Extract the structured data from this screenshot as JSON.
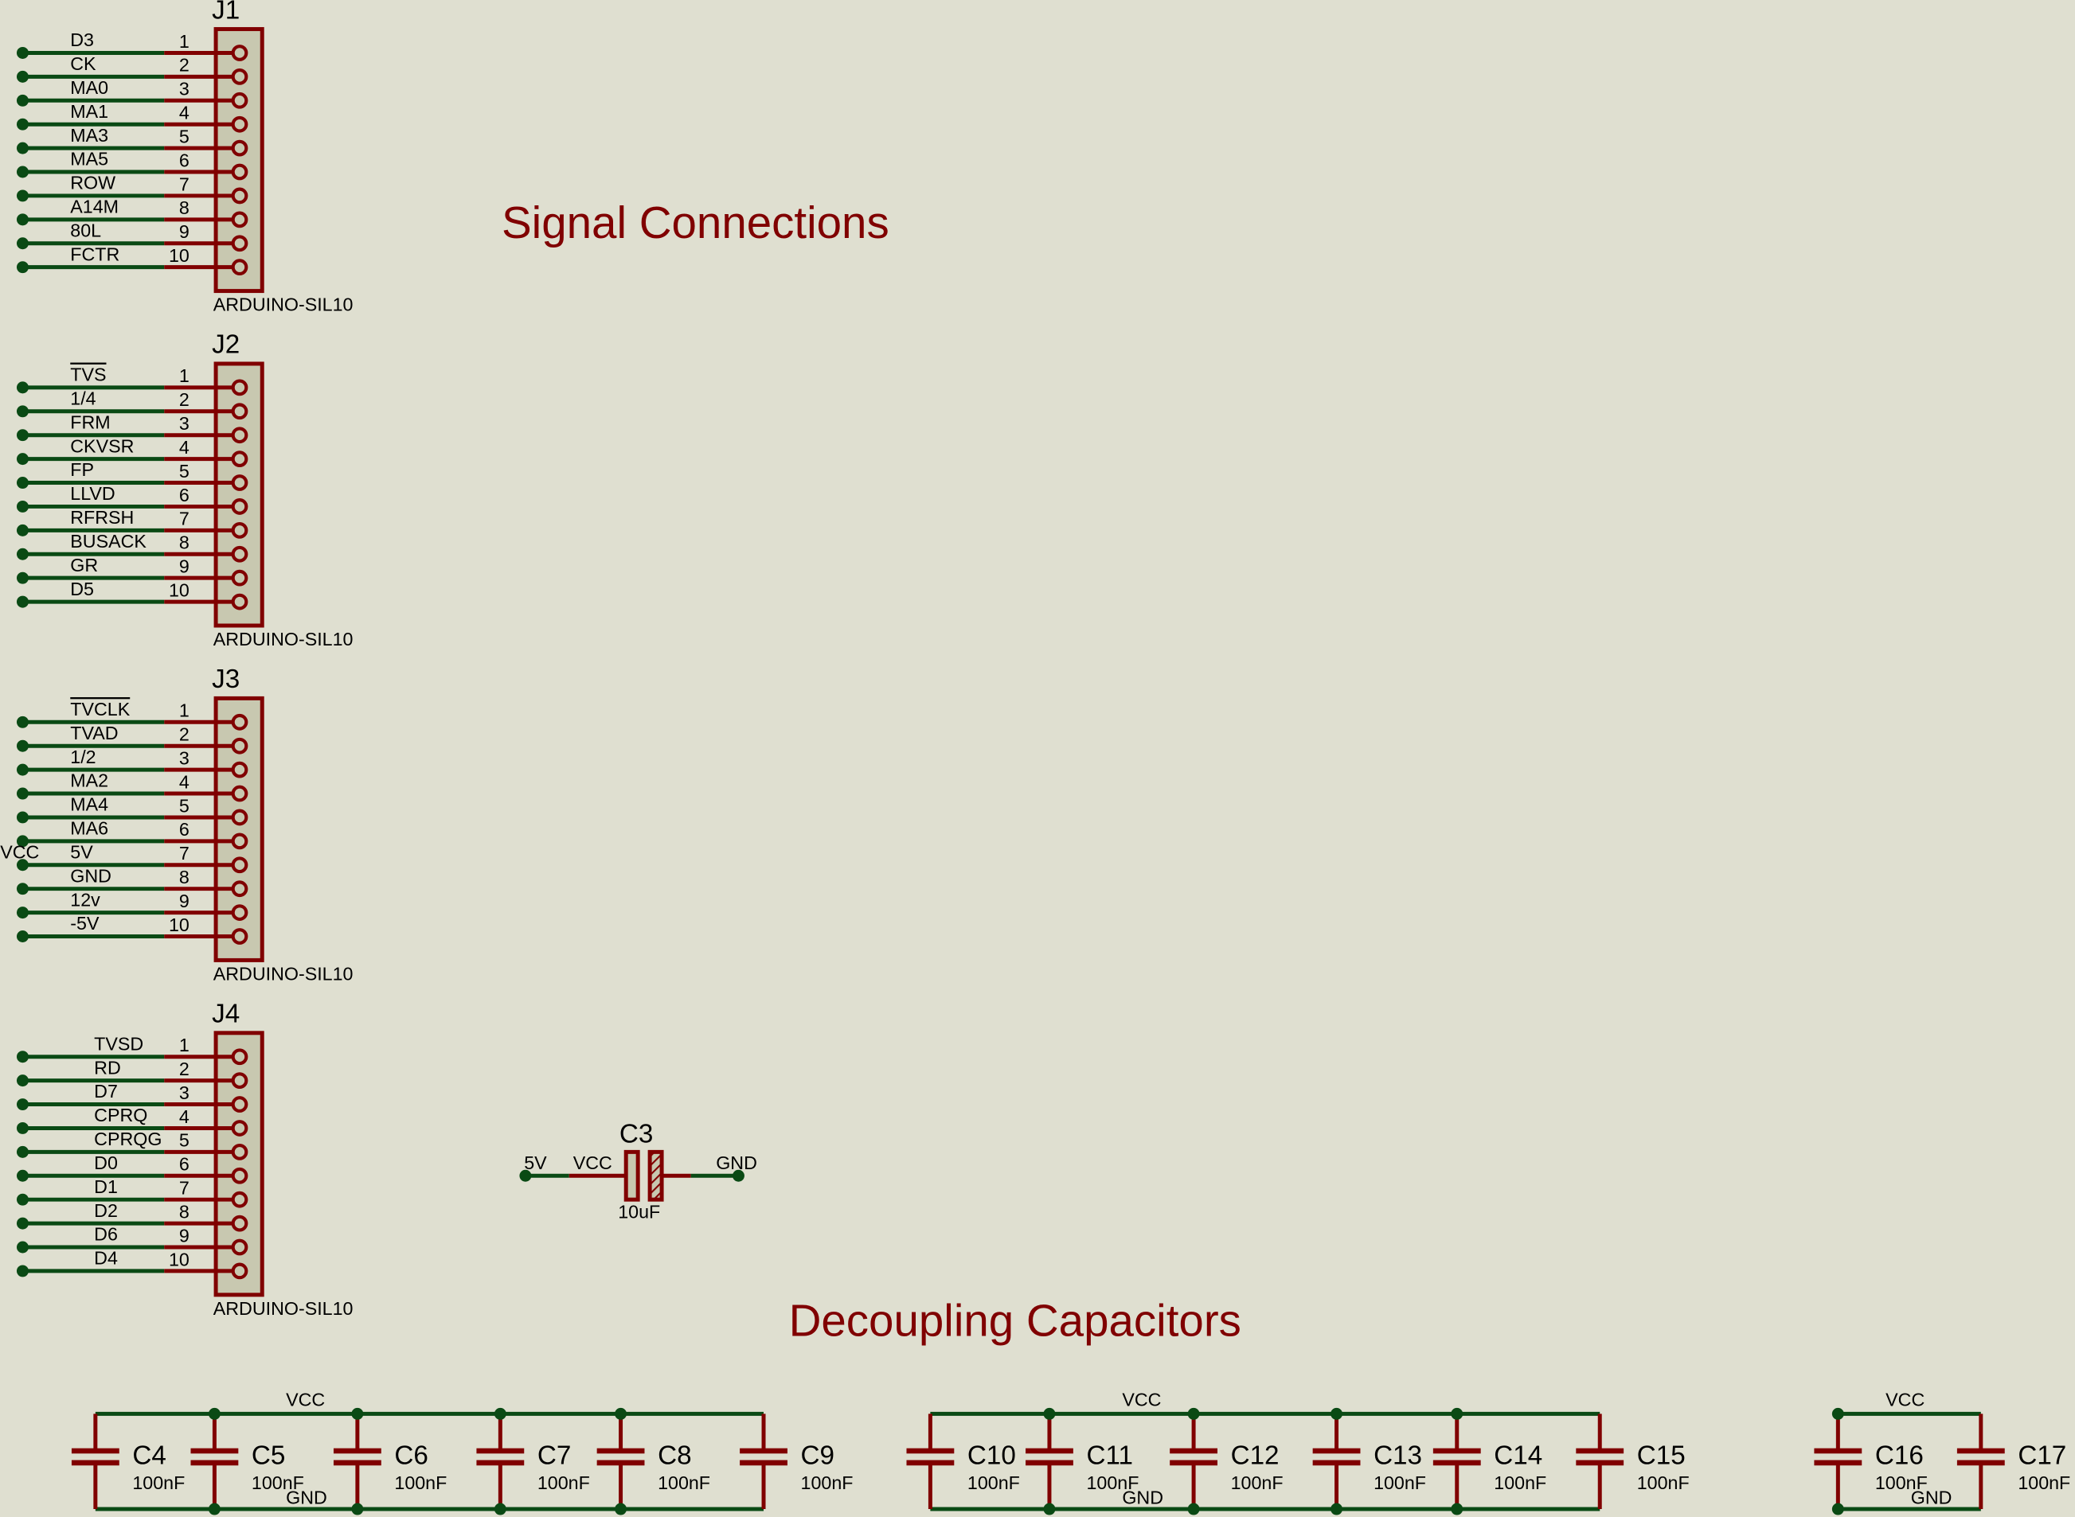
{
  "colors": {
    "background": "#dfdfd0",
    "wire": "#0a4a14",
    "pin": "#800000",
    "body_fill": "#c8c8b0",
    "title": "#800000"
  },
  "titles": {
    "signal": "Signal Connections",
    "decoupling": "Decoupling Capacitors"
  },
  "connectors": [
    {
      "ref": "J1",
      "part": "ARDUINO-SIL10",
      "pins": [
        {
          "num": "1",
          "net": "D3"
        },
        {
          "num": "2",
          "net": "CK"
        },
        {
          "num": "3",
          "net": "MA0"
        },
        {
          "num": "4",
          "net": "MA1"
        },
        {
          "num": "5",
          "net": "MA3"
        },
        {
          "num": "6",
          "net": "MA5"
        },
        {
          "num": "7",
          "net": "ROW"
        },
        {
          "num": "8",
          "net": "A14M"
        },
        {
          "num": "9",
          "net": "80L"
        },
        {
          "num": "10",
          "net": "FCTR"
        }
      ]
    },
    {
      "ref": "J2",
      "part": "ARDUINO-SIL10",
      "pins": [
        {
          "num": "1",
          "net": "TVS",
          "overbar": true
        },
        {
          "num": "2",
          "net": "1/4"
        },
        {
          "num": "3",
          "net": "FRM"
        },
        {
          "num": "4",
          "net": "CKVSR"
        },
        {
          "num": "5",
          "net": "FP"
        },
        {
          "num": "6",
          "net": "LLVD"
        },
        {
          "num": "7",
          "net": "RFRSH"
        },
        {
          "num": "8",
          "net": "BUSACK"
        },
        {
          "num": "9",
          "net": "GR"
        },
        {
          "num": "10",
          "net": "D5"
        }
      ]
    },
    {
      "ref": "J3",
      "part": "ARDUINO-SIL10",
      "pins": [
        {
          "num": "1",
          "net": "TVCLK",
          "overbar": true
        },
        {
          "num": "2",
          "net": "TVAD"
        },
        {
          "num": "3",
          "net": "1/2"
        },
        {
          "num": "4",
          "net": "MA2"
        },
        {
          "num": "5",
          "net": "MA4"
        },
        {
          "num": "6",
          "net": "MA6"
        },
        {
          "num": "7",
          "net": "5V",
          "alias": "VCC"
        },
        {
          "num": "8",
          "net": "GND"
        },
        {
          "num": "9",
          "net": "12v"
        },
        {
          "num": "10",
          "net": "-5V"
        }
      ]
    },
    {
      "ref": "J4",
      "part": "ARDUINO-SIL10",
      "pins": [
        {
          "num": "1",
          "net": "TVSD"
        },
        {
          "num": "2",
          "net": "RD"
        },
        {
          "num": "3",
          "net": "D7"
        },
        {
          "num": "4",
          "net": "CPRQ"
        },
        {
          "num": "5",
          "net": "CPRQG"
        },
        {
          "num": "6",
          "net": "D0"
        },
        {
          "num": "7",
          "net": "D1"
        },
        {
          "num": "8",
          "net": "D2"
        },
        {
          "num": "9",
          "net": "D6"
        },
        {
          "num": "10",
          "net": "D4"
        }
      ]
    }
  ],
  "c3": {
    "ref": "C3",
    "value": "10uF",
    "left_net": "5V",
    "left_alias": "VCC",
    "right_net": "GND"
  },
  "banks": [
    {
      "vcc": "VCC",
      "gnd": "GND",
      "caps": [
        {
          "ref": "C4",
          "value": "100nF"
        },
        {
          "ref": "C5",
          "value": "100nF"
        },
        {
          "ref": "C6",
          "value": "100nF"
        },
        {
          "ref": "C7",
          "value": "100nF"
        },
        {
          "ref": "C8",
          "value": "100nF"
        },
        {
          "ref": "C9",
          "value": "100nF"
        }
      ]
    },
    {
      "vcc": "VCC",
      "gnd": "GND",
      "caps": [
        {
          "ref": "C10",
          "value": "100nF"
        },
        {
          "ref": "C11",
          "value": "100nF"
        },
        {
          "ref": "C12",
          "value": "100nF"
        },
        {
          "ref": "C13",
          "value": "100nF"
        },
        {
          "ref": "C14",
          "value": "100nF"
        },
        {
          "ref": "C15",
          "value": "100nF"
        }
      ]
    },
    {
      "vcc": "VCC",
      "gnd": "GND",
      "caps": [
        {
          "ref": "C16",
          "value": "100nF"
        },
        {
          "ref": "C17",
          "value": "100nF"
        }
      ]
    }
  ]
}
